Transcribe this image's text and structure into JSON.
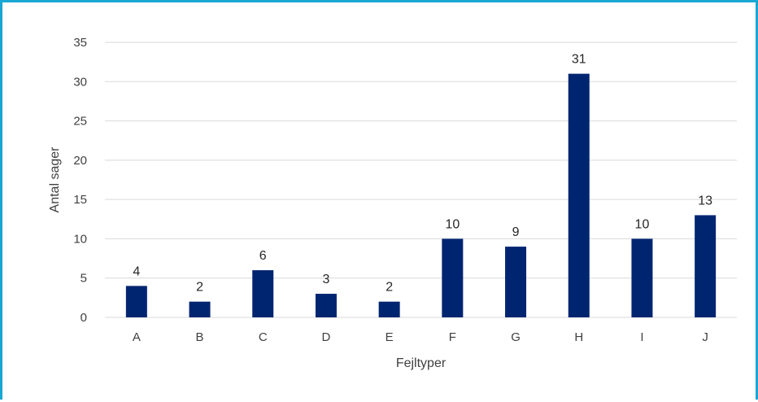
{
  "chart_data": {
    "type": "bar",
    "categories": [
      "A",
      "B",
      "C",
      "D",
      "E",
      "F",
      "G",
      "H",
      "I",
      "J"
    ],
    "series": [
      {
        "values": [
          4,
          2,
          6,
          3,
          2,
          10,
          9,
          31,
          10,
          13
        ]
      }
    ],
    "data_labels": [
      "4",
      "2",
      "6",
      "3",
      "2",
      "10",
      "9",
      "31",
      "10",
      "13"
    ],
    "xlabel": "Fejltyper",
    "ylabel": "Antal sager",
    "ylim": [
      0,
      35
    ],
    "yticks": [
      0,
      5,
      10,
      15,
      20,
      25,
      30,
      35
    ],
    "grid": true,
    "legend": "none",
    "colors": {
      "bar": "#002570",
      "grid": "#d9d9d9",
      "frame": "#19a7d4"
    }
  }
}
